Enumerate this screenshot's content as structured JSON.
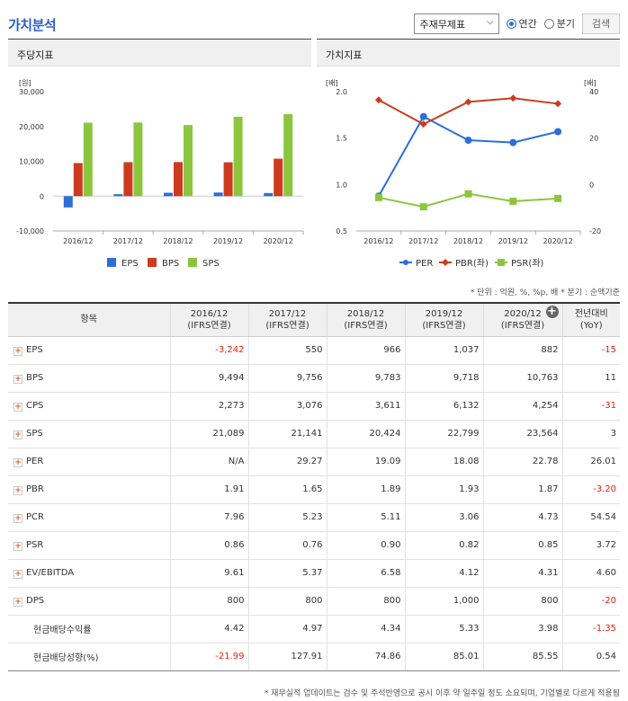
{
  "page": {
    "title": "가치분석"
  },
  "controls": {
    "select_value": "주재무제표",
    "radio_annual": "연간",
    "radio_quarter": "분기",
    "search_label": "검색"
  },
  "left_panel": {
    "title": "주당지표"
  },
  "right_panel": {
    "title": "가치지표"
  },
  "chart_data": [
    {
      "type": "bar",
      "title": "주당지표",
      "ylabel": "[원]",
      "categories": [
        "2016/12",
        "2017/12",
        "2018/12",
        "2019/12",
        "2020/12"
      ],
      "ylim": [
        -10000,
        30000
      ],
      "yticks": [
        -10000,
        0,
        10000,
        20000,
        30000
      ],
      "ytick_labels": [
        "-10,000",
        "0",
        "10,000",
        "20,000",
        "30,000"
      ],
      "series": [
        {
          "name": "EPS",
          "color": "#2c6fd6",
          "values": [
            -3242,
            550,
            966,
            1037,
            882
          ]
        },
        {
          "name": "BPS",
          "color": "#cc3b1f",
          "values": [
            9494,
            9756,
            9783,
            9718,
            10763
          ]
        },
        {
          "name": "SPS",
          "color": "#8cc63f",
          "values": [
            21089,
            21141,
            20424,
            22799,
            23564
          ]
        }
      ],
      "legend": "bottom"
    },
    {
      "type": "line",
      "title": "가치지표",
      "ylabel_left": "[배]",
      "ylabel_right": "[배]",
      "categories": [
        "2016/12",
        "2017/12",
        "2018/12",
        "2019/12",
        "2020/12"
      ],
      "ylim_left": [
        0.5,
        2.0
      ],
      "yticks_left": [
        "0.5",
        "1.0",
        "1.5",
        "2.0"
      ],
      "ylim_right": [
        -20,
        40
      ],
      "yticks_right": [
        "-20",
        "0",
        "20",
        "40"
      ],
      "series": [
        {
          "name": "PER",
          "color": "#2c6fd6",
          "axis": "right",
          "marker": "circle",
          "values": [
            -5,
            29.27,
            19.09,
            18.08,
            22.78
          ]
        },
        {
          "name": "PBR(좌)",
          "color": "#cc3b1f",
          "axis": "left",
          "marker": "diamond",
          "values": [
            1.91,
            1.65,
            1.89,
            1.93,
            1.87
          ]
        },
        {
          "name": "PSR(좌)",
          "color": "#8cc63f",
          "axis": "left",
          "marker": "square",
          "values": [
            0.86,
            0.76,
            0.9,
            0.82,
            0.85
          ]
        }
      ],
      "legend": "bottom"
    }
  ],
  "table": {
    "unit_note": "* 단위 : 억원, %, %p, 배   * 분기 : 순액기준",
    "headers": [
      {
        "label": "항목"
      },
      {
        "label": "2016/12",
        "sub": "(IFRS연결)"
      },
      {
        "label": "2017/12",
        "sub": "(IFRS연결)"
      },
      {
        "label": "2018/12",
        "sub": "(IFRS연결)"
      },
      {
        "label": "2019/12",
        "sub": "(IFRS연결)"
      },
      {
        "label": "2020/12",
        "sub": "(IFRS연결)"
      },
      {
        "label": "전년대비",
        "sub": "(YoY)"
      }
    ],
    "rows": [
      {
        "label": "EPS",
        "expand": true,
        "cells": [
          "-3,242",
          "550",
          "966",
          "1,037",
          "882",
          "-15"
        ]
      },
      {
        "label": "BPS",
        "expand": true,
        "cells": [
          "9,494",
          "9,756",
          "9,783",
          "9,718",
          "10,763",
          "11"
        ]
      },
      {
        "label": "CPS",
        "expand": true,
        "cells": [
          "2,273",
          "3,076",
          "3,611",
          "6,132",
          "4,254",
          "-31"
        ]
      },
      {
        "label": "SPS",
        "expand": true,
        "cells": [
          "21,089",
          "21,141",
          "20,424",
          "22,799",
          "23,564",
          "3"
        ]
      },
      {
        "label": "PER",
        "expand": true,
        "cells": [
          "N/A",
          "29.27",
          "19.09",
          "18.08",
          "22.78",
          "26.01"
        ]
      },
      {
        "label": "PBR",
        "expand": true,
        "cells": [
          "1.91",
          "1.65",
          "1.89",
          "1.93",
          "1.87",
          "-3.20"
        ]
      },
      {
        "label": "PCR",
        "expand": true,
        "cells": [
          "7.96",
          "5.23",
          "5.11",
          "3.06",
          "4.73",
          "54.54"
        ]
      },
      {
        "label": "PSR",
        "expand": true,
        "cells": [
          "0.86",
          "0.76",
          "0.90",
          "0.82",
          "0.85",
          "3.72"
        ]
      },
      {
        "label": "EV/EBITDA",
        "expand": true,
        "cells": [
          "9.61",
          "5.37",
          "6.58",
          "4.12",
          "4.31",
          "4.60"
        ]
      },
      {
        "label": "DPS",
        "expand": true,
        "cells": [
          "800",
          "800",
          "800",
          "1,000",
          "800",
          "-20"
        ]
      },
      {
        "label": "현금배당수익률",
        "expand": false,
        "cells": [
          "4.42",
          "4.97",
          "4.34",
          "5.33",
          "3.98",
          "-1.35"
        ]
      },
      {
        "label": "현금배당성향(%)",
        "expand": false,
        "cells": [
          "-21.99",
          "127.91",
          "74.86",
          "85.01",
          "85.55",
          "0.54"
        ]
      }
    ],
    "footnote": "* 재무실적 업데이트는 검수 및 주석반영으로 공시 이후 약 일주일 정도 소요되며, 기업별로 다르게 적용됨"
  }
}
